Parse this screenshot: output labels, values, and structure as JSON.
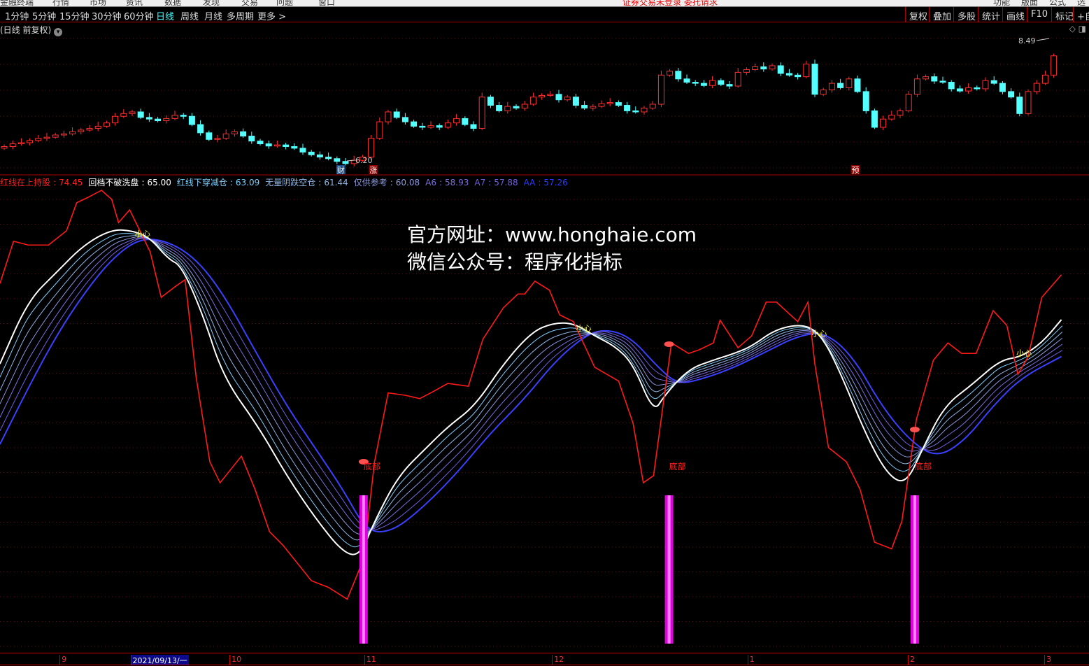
{
  "menu": {
    "items": [
      "金融终端",
      "行情",
      "市场",
      "资讯",
      "数据",
      "发现",
      "交易",
      "问题",
      "窗口"
    ],
    "alert": "证券交易未登录 委托请求",
    "right": [
      "功能",
      "版面",
      "公式",
      "选股"
    ]
  },
  "toolbar": {
    "periods": [
      "1分钟",
      "5分钟",
      "15分钟",
      "30分钟",
      "60分钟",
      "日线",
      "周线",
      "月线",
      "多周期",
      "更多 >"
    ],
    "active": "日线",
    "right": [
      "复权",
      "叠加",
      "多股",
      "统计",
      "画线",
      "F10",
      "标记",
      "+自"
    ]
  },
  "chart_title": "(日线 前复权)",
  "icons": {
    "title_dropdown": "chevron-down-icon",
    "diamond": "diamond-icon",
    "panel": "panel-toggle-icon"
  },
  "price_chart": {
    "type": "candlestick",
    "high_label": "8.49",
    "low_label": "6.20",
    "markers": [
      {
        "text": "财",
        "bar": 39.5,
        "color": "#1a4d8c"
      },
      {
        "text": "涨",
        "bar": 43.3,
        "color": "#8b0000"
      },
      {
        "text": "预",
        "bar": 99.8,
        "color": "#8b0000"
      }
    ],
    "closes": [
      6.55,
      6.6,
      6.62,
      6.66,
      6.7,
      6.72,
      6.76,
      6.78,
      6.82,
      6.85,
      6.88,
      6.92,
      6.98,
      7.1,
      7.15,
      7.18,
      7.08,
      7.05,
      7.02,
      7.06,
      7.12,
      7.1,
      6.95,
      6.8,
      6.68,
      6.7,
      6.78,
      6.82,
      6.74,
      6.65,
      6.6,
      6.56,
      6.58,
      6.55,
      6.52,
      6.45,
      6.4,
      6.36,
      6.33,
      6.28,
      6.24,
      6.3,
      6.36,
      6.7,
      7.0,
      7.18,
      7.08,
      7.0,
      6.92,
      6.9,
      6.93,
      6.9,
      6.98,
      7.06,
      6.95,
      6.88,
      7.45,
      7.3,
      7.2,
      7.28,
      7.25,
      7.32,
      7.45,
      7.48,
      7.5,
      7.4,
      7.45,
      7.3,
      7.25,
      7.28,
      7.33,
      7.35,
      7.3,
      7.2,
      7.18,
      7.25,
      7.32,
      7.85,
      7.92,
      7.78,
      7.72,
      7.7,
      7.66,
      7.75,
      7.68,
      7.65,
      7.9,
      7.95,
      8.0,
      7.96,
      8.02,
      7.88,
      7.85,
      7.82,
      8.05,
      7.5,
      7.58,
      7.7,
      7.62,
      7.78,
      7.55,
      7.2,
      6.9,
      7.05,
      7.12,
      7.2,
      7.5,
      7.78,
      7.82,
      7.74,
      7.72,
      7.6,
      7.56,
      7.62,
      7.6,
      7.75,
      7.7,
      7.55,
      7.45,
      7.15,
      7.55,
      7.7,
      7.85,
      8.2
    ]
  },
  "legend": [
    {
      "label": "红线在上持股",
      "value": "74.45",
      "color": "#ff2020"
    },
    {
      "label": "回档不破洗盘",
      "value": "65.00",
      "color": "#ffffff"
    },
    {
      "label": "红线下穿减仓",
      "value": "63.09",
      "color": "#7fd0ff"
    },
    {
      "label": "无量阴跌空仓",
      "value": "61.44",
      "color": "#8fb8e8"
    },
    {
      "label": "仅供参考",
      "value": "60.08",
      "color": "#8c9ae0"
    },
    {
      "label": "A6",
      "value": "58.93",
      "color": "#7a70e0"
    },
    {
      "label": "A7",
      "value": "57.88",
      "color": "#7060e0"
    },
    {
      "label": "AA",
      "value": "57.26",
      "color": "#2a3cff"
    }
  ],
  "watermark": [
    "官方网址：www.honghaie.com",
    "微信公众号：程序化指标"
  ],
  "chart_data": {
    "type": "line",
    "ylim": [
      -4.6,
      92.8
    ],
    "grid": true,
    "series": [
      {
        "name": "红线在上持股",
        "color": "#ff1a1a",
        "points": [
          [
            -0.5,
            72.6
          ],
          [
            1.1,
            81.5
          ],
          [
            2.8,
            80.7
          ],
          [
            5.2,
            80.7
          ],
          [
            7.3,
            83.7
          ],
          [
            8.5,
            89.6
          ],
          [
            9.8,
            90.7
          ],
          [
            11.4,
            92.2
          ],
          [
            12.6,
            90.3
          ],
          [
            13.4,
            85.4
          ],
          [
            14.7,
            88.1
          ],
          [
            15.9,
            83.7
          ],
          [
            17.1,
            79.3
          ],
          [
            18.4,
            69.7
          ],
          [
            20,
            71.9
          ],
          [
            21.2,
            73.4
          ],
          [
            22.5,
            52.8
          ],
          [
            24.1,
            35.1
          ],
          [
            25.3,
            30.7
          ],
          [
            27.8,
            36.3
          ],
          [
            29.4,
            29.3
          ],
          [
            31.1,
            20.4
          ],
          [
            32.7,
            17.5
          ],
          [
            36,
            10.1
          ],
          [
            38,
            8.7
          ],
          [
            40.2,
            6.2
          ],
          [
            42.1,
            14.6
          ],
          [
            43.4,
            35.1
          ],
          [
            45,
            49.6
          ],
          [
            47,
            49.1
          ],
          [
            48.7,
            48.4
          ],
          [
            50.3,
            49.9
          ],
          [
            52,
            51.6
          ],
          [
            54.4,
            51.0
          ],
          [
            56.1,
            60.9
          ],
          [
            58.5,
            67.5
          ],
          [
            60.2,
            70.4
          ],
          [
            61,
            70.4
          ],
          [
            62.2,
            73.1
          ],
          [
            63.9,
            71.2
          ],
          [
            65.1,
            66.0
          ],
          [
            66.7,
            64.6
          ],
          [
            69.2,
            55.0
          ],
          [
            72,
            52.1
          ],
          [
            73.7,
            43.2
          ],
          [
            74.9,
            30.7
          ],
          [
            76.1,
            32.2
          ],
          [
            78.2,
            60.1
          ],
          [
            80.2,
            57.9
          ],
          [
            81.5,
            58.7
          ],
          [
            83.1,
            60.1
          ],
          [
            83.9,
            64.9
          ],
          [
            86,
            59.1
          ],
          [
            87.6,
            61.6
          ],
          [
            89.3,
            68.7
          ],
          [
            90.5,
            68.7
          ],
          [
            93,
            64.6
          ],
          [
            94.2,
            68.7
          ],
          [
            95,
            55.7
          ],
          [
            96.6,
            38.1
          ],
          [
            98.7,
            35.1
          ],
          [
            100.3,
            29.3
          ],
          [
            102,
            18.2
          ],
          [
            104,
            16.8
          ],
          [
            105.2,
            22.6
          ],
          [
            106.9,
            44.0
          ],
          [
            108.9,
            56.5
          ],
          [
            110.6,
            60.1
          ],
          [
            112.2,
            57.9
          ],
          [
            113.9,
            57.9
          ],
          [
            115.9,
            66.9
          ],
          [
            117.5,
            63.8
          ],
          [
            118.8,
            53.5
          ],
          [
            120,
            57.2
          ],
          [
            121.6,
            69.7
          ],
          [
            123.9,
            74.45
          ]
        ]
      },
      {
        "name": "回档不破洗盘",
        "color": "#ffffff",
        "points": [
          [
            -0.5,
            55.7
          ],
          [
            2.8,
            69.0
          ],
          [
            6.1,
            74.9
          ],
          [
            9.3,
            80.7
          ],
          [
            12.6,
            84.0
          ],
          [
            15.1,
            83.7
          ],
          [
            17.1,
            82.2
          ],
          [
            19.2,
            77.8
          ],
          [
            20.8,
            76.3
          ],
          [
            23.3,
            66.0
          ],
          [
            25.7,
            52.8
          ],
          [
            29.8,
            42.5
          ],
          [
            33.1,
            32.2
          ],
          [
            36.4,
            23.4
          ],
          [
            39.7,
            16.0
          ],
          [
            41.7,
            15.3
          ],
          [
            43.4,
            22.6
          ],
          [
            46.2,
            32.2
          ],
          [
            49.5,
            38.1
          ],
          [
            52,
            42.5
          ],
          [
            55.2,
            46.9
          ],
          [
            58.5,
            55.7
          ],
          [
            61.8,
            62.4
          ],
          [
            64.3,
            64.3
          ],
          [
            66.7,
            64.3
          ],
          [
            69.2,
            61.6
          ],
          [
            71.6,
            59.4
          ],
          [
            73.7,
            55.7
          ],
          [
            76.1,
            45.4
          ],
          [
            77.4,
            49.1
          ],
          [
            80.2,
            54.6
          ],
          [
            83.1,
            56.5
          ],
          [
            85.6,
            57.9
          ],
          [
            87.6,
            59.4
          ],
          [
            90.5,
            63.1
          ],
          [
            93.8,
            64.1
          ],
          [
            95.8,
            61.6
          ],
          [
            97.9,
            54.3
          ],
          [
            101.1,
            40.3
          ],
          [
            103.6,
            32.2
          ],
          [
            105.7,
            30.4
          ],
          [
            107.7,
            38.1
          ],
          [
            110.2,
            46.9
          ],
          [
            113.4,
            51.3
          ],
          [
            116.7,
            56.5
          ],
          [
            119.2,
            57.2
          ],
          [
            121.6,
            60.1
          ],
          [
            123.9,
            65.0
          ]
        ]
      },
      {
        "name": "AA",
        "color": "#3a40ff",
        "points": [
          [
            -0.5,
            38.8
          ],
          [
            2.8,
            50.6
          ],
          [
            6.1,
            61.6
          ],
          [
            9.3,
            70.4
          ],
          [
            12.6,
            77.8
          ],
          [
            15.9,
            82.2
          ],
          [
            19.2,
            81.5
          ],
          [
            22.5,
            77.8
          ],
          [
            25.7,
            70.4
          ],
          [
            29.8,
            57.2
          ],
          [
            33.1,
            46.9
          ],
          [
            36.4,
            38.1
          ],
          [
            39.7,
            29.3
          ],
          [
            42.5,
            20.4
          ],
          [
            45.4,
            20.4
          ],
          [
            48.7,
            24.9
          ],
          [
            52.8,
            32.2
          ],
          [
            56.9,
            41.0
          ],
          [
            61,
            48.4
          ],
          [
            64.3,
            55.7
          ],
          [
            67.5,
            60.9
          ],
          [
            70,
            63.1
          ],
          [
            73.3,
            61.6
          ],
          [
            76.6,
            55.0
          ],
          [
            79,
            51.3
          ],
          [
            82.3,
            52.8
          ],
          [
            85.6,
            55.0
          ],
          [
            88.9,
            57.9
          ],
          [
            93,
            61.6
          ],
          [
            96.2,
            62.4
          ],
          [
            99.5,
            57.2
          ],
          [
            102.8,
            46.9
          ],
          [
            106.1,
            39.6
          ],
          [
            109.3,
            35.9
          ],
          [
            112.6,
            39.6
          ],
          [
            115.9,
            46.9
          ],
          [
            119.2,
            52.8
          ],
          [
            123.9,
            57.26
          ]
        ]
      }
    ],
    "signals": {
      "bottom_label": "底部",
      "bottom_bars": [
        42.2,
        78.0,
        106.8
      ],
      "caution_label": "小心",
      "caution_bars": [
        16.3,
        68.0,
        95.6,
        119.6
      ]
    }
  },
  "xaxis": {
    "labels": [
      {
        "text": "9",
        "bar": 6.5
      },
      {
        "text": "10",
        "bar": 26.4
      },
      {
        "text": "11",
        "bar": 42.2
      },
      {
        "text": "12",
        "bar": 64.2
      },
      {
        "text": "1",
        "bar": 87.1
      },
      {
        "text": "2",
        "bar": 105.9
      },
      {
        "text": "3",
        "bar": 121.9
      }
    ],
    "cursor": "2021/09/13/一",
    "cursor_bar": 14.8
  }
}
